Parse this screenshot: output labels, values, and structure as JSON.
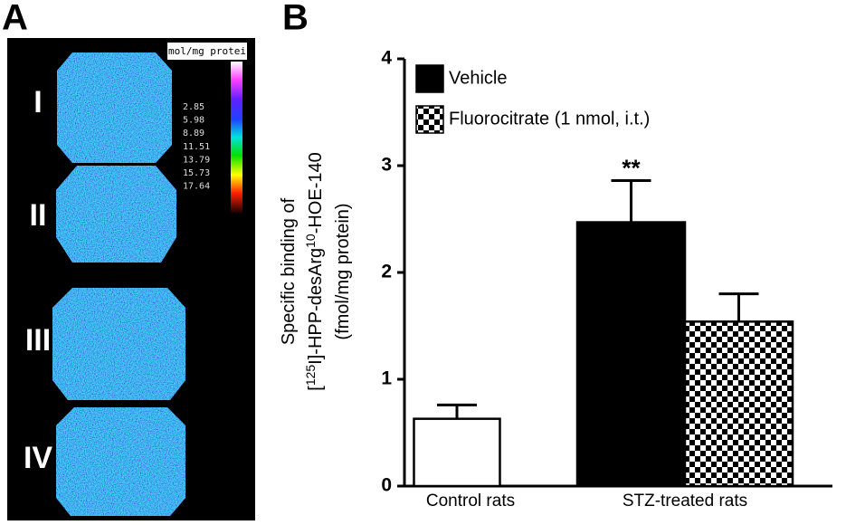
{
  "panel_labels": [
    "A",
    "B"
  ],
  "panel_a": {
    "section_labels": [
      "I",
      "II",
      "III",
      "IV"
    ],
    "colorbar_title": "fmol/mg protein",
    "colorbar_ticks": [
      2.85,
      5.98,
      8.89,
      11.51,
      13.79,
      15.73,
      17.64
    ]
  },
  "chart_data": {
    "type": "bar",
    "ylabel": {
      "line1": "Specific binding of",
      "line2": [
        "[",
        "125",
        "I]-HPP-desArg",
        "10",
        "-HOE-140"
      ],
      "line3": "(fmol/mg protein)"
    },
    "categories": [
      "Control rats",
      "STZ-treated rats"
    ],
    "series": [
      {
        "color": "#ffffff",
        "values": [
          0.63,
          null
        ],
        "errors": [
          0.13,
          null
        ]
      },
      {
        "name": "Vehicle",
        "color": "#000000",
        "values": [
          null,
          2.47
        ],
        "errors": [
          null,
          0.39
        ]
      },
      {
        "name": "Fluorocitrate (1 nmol, i.t.)",
        "color": "#000000",
        "pattern": "checker",
        "values": [
          null,
          1.54
        ],
        "errors": [
          null,
          0.26
        ]
      }
    ],
    "annotations": [
      {
        "text": "**",
        "category": 1,
        "series": 1
      }
    ],
    "ylim": [
      0,
      4
    ],
    "yticks": [
      0,
      1,
      2,
      3,
      4
    ],
    "legend": "upper left"
  }
}
